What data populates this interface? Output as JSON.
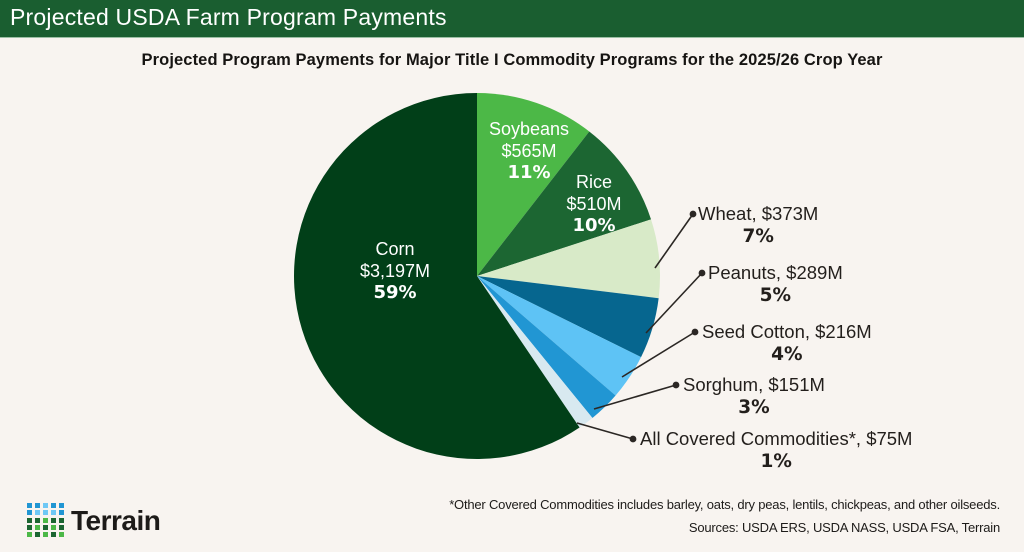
{
  "header": {
    "title": "Projected USDA Farm Program Payments",
    "bg_color": "#1a5e30"
  },
  "subtitle": "Projected Program Payments for Major Title I Commodity Programs for the 2025/26 Crop Year",
  "chart_data": {
    "type": "pie",
    "title": "Projected Program Payments for Major Title I Commodity Programs for the 2025/26 Crop Year",
    "unit": "$M",
    "start_angle": "12 o'clock, clockwise (Corn fills remainder)",
    "slices": [
      {
        "name": "Soybeans",
        "value": 565,
        "value_label": "$565M",
        "pct_label": "11%",
        "color": "#4cb847",
        "label_position": "inside"
      },
      {
        "name": "Rice",
        "value": 510,
        "value_label": "$510M",
        "pct_label": "10%",
        "color": "#1c6632",
        "label_position": "inside"
      },
      {
        "name": "Wheat",
        "value": 373,
        "value_label": "$373M",
        "pct_label": "7%",
        "color": "#d8eac8",
        "label_position": "outside"
      },
      {
        "name": "Peanuts",
        "value": 289,
        "value_label": "$289M",
        "pct_label": "5%",
        "color": "#06668f",
        "label_position": "outside"
      },
      {
        "name": "Seed Cotton",
        "value": 216,
        "value_label": "$216M",
        "pct_label": "4%",
        "color": "#5ec3f5",
        "label_position": "outside"
      },
      {
        "name": "Sorghum",
        "value": 151,
        "value_label": "$151M",
        "pct_label": "3%",
        "color": "#2196d3",
        "label_position": "outside"
      },
      {
        "name": "All Covered Commodities*",
        "value": 75,
        "value_label": "$75M",
        "pct_label": "1%",
        "color": "#d8e9f0",
        "label_position": "outside"
      },
      {
        "name": "Corn",
        "value": 3197,
        "value_label": "$3,197M",
        "pct_label": "59%",
        "color": "#013f18",
        "label_position": "inside"
      }
    ],
    "legend": "none (direct labels)"
  },
  "labels": {
    "corn": {
      "name": "Corn",
      "value": "$3,197M",
      "pct": "59%"
    },
    "soybeans": {
      "name": "Soybeans",
      "value": "$565M",
      "pct": "11%"
    },
    "rice": {
      "name": "Rice",
      "value": "$510M",
      "pct": "10%"
    },
    "wheat": {
      "text": "Wheat, $373M",
      "pct": "7%"
    },
    "peanuts": {
      "text": "Peanuts, $289M",
      "pct": "5%"
    },
    "seed_cotton": {
      "text": "Seed Cotton, $216M",
      "pct": "4%"
    },
    "sorghum": {
      "text": "Sorghum, $151M",
      "pct": "3%"
    },
    "all_covered": {
      "text": "All Covered Commodities*, $75M",
      "pct": "1%"
    }
  },
  "footer": {
    "logo_text": "Terrain",
    "footnote": "*Other Covered Commodities includes barley, oats, dry peas, lentils, chickpeas, and other oilseeds.",
    "sources": "Sources: USDA ERS, USDA NASS, USDA FSA, Terrain"
  },
  "colors": {
    "background": "#f8f4f0",
    "logo_blue": "#2196d3",
    "logo_light_blue": "#6fc8f5",
    "logo_dark_green": "#1c6632",
    "logo_green": "#4cb847"
  }
}
